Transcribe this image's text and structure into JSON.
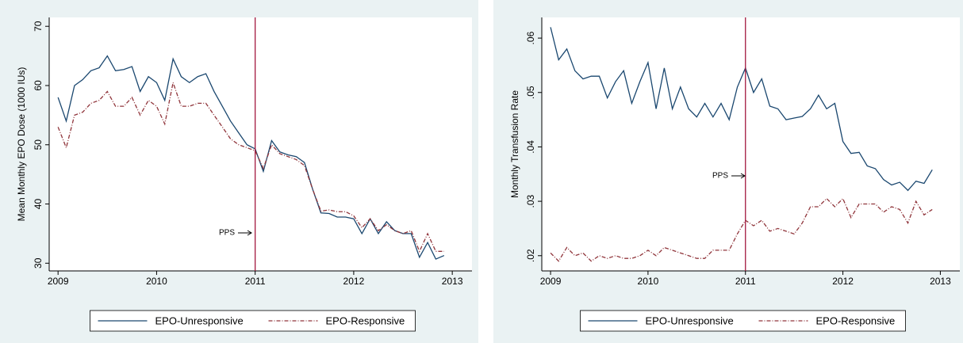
{
  "chart_data": [
    {
      "type": "line",
      "y_label": "Mean Monthly EPO Dose (1000 IUs)",
      "annotation": "PPS",
      "vline": 2011,
      "vline_color": "#a3193f",
      "x": [
        2009,
        2009.083,
        2009.167,
        2009.25,
        2009.333,
        2009.417,
        2009.5,
        2009.583,
        2009.667,
        2009.75,
        2009.833,
        2009.917,
        2010,
        2010.083,
        2010.167,
        2010.25,
        2010.333,
        2010.417,
        2010.5,
        2010.583,
        2010.667,
        2010.75,
        2010.833,
        2010.917,
        2011,
        2011.083,
        2011.167,
        2011.25,
        2011.333,
        2011.417,
        2011.5,
        2011.583,
        2011.667,
        2011.75,
        2011.833,
        2011.917,
        2012,
        2012.083,
        2012.167,
        2012.25,
        2012.333,
        2012.417,
        2012.5,
        2012.583,
        2012.667,
        2012.75,
        2012.833,
        2012.917
      ],
      "series": [
        {
          "name": "EPO-Unresponsive",
          "color": "#1a476f",
          "style": "solid",
          "values": [
            58,
            54,
            60,
            61,
            62.5,
            63,
            65,
            62.5,
            62.7,
            63.2,
            59,
            61.5,
            60.5,
            57.5,
            64.5,
            61.5,
            60.5,
            61.5,
            62,
            59,
            56.5,
            54,
            52,
            50,
            49.3,
            45.5,
            50.7,
            48.8,
            48.3,
            48,
            47,
            42.5,
            38.5,
            38.4,
            37.8,
            37.8,
            37.5,
            35,
            37.5,
            35,
            37,
            35.5,
            35,
            35,
            31,
            33.5,
            30.7,
            31.3
          ]
        },
        {
          "name": "EPO-Responsive",
          "color": "#90353b",
          "style": "dashdot",
          "values": [
            53,
            49.5,
            55,
            55.5,
            57,
            57.5,
            59,
            56.5,
            56.5,
            58,
            55,
            57.5,
            56.5,
            53.5,
            60.5,
            56.5,
            56.5,
            57,
            57,
            55,
            53,
            51,
            50,
            49.5,
            49,
            46,
            50,
            48.5,
            48,
            47.5,
            46.5,
            42.5,
            38.8,
            39,
            38.7,
            38.7,
            38,
            36,
            37.5,
            35.5,
            36.5,
            35.5,
            35,
            35.5,
            32,
            35,
            32,
            32
          ]
        }
      ],
      "xlim": [
        2008.91,
        2013.2
      ],
      "xticks": [
        2009,
        2010,
        2011,
        2012,
        2013
      ],
      "ylim": [
        28.7,
        71.5
      ],
      "yticks": [
        30,
        40,
        50,
        60,
        70
      ],
      "legend": "bottom"
    },
    {
      "type": "line",
      "y_label": "Monthly Transfusion Rate",
      "annotation": "PPS",
      "vline": 2011,
      "vline_color": "#a3193f",
      "x": [
        2009,
        2009.083,
        2009.167,
        2009.25,
        2009.333,
        2009.417,
        2009.5,
        2009.583,
        2009.667,
        2009.75,
        2009.833,
        2009.917,
        2010,
        2010.083,
        2010.167,
        2010.25,
        2010.333,
        2010.417,
        2010.5,
        2010.583,
        2010.667,
        2010.75,
        2010.833,
        2010.917,
        2011,
        2011.083,
        2011.167,
        2011.25,
        2011.333,
        2011.417,
        2011.5,
        2011.583,
        2011.667,
        2011.75,
        2011.833,
        2011.917,
        2012,
        2012.083,
        2012.167,
        2012.25,
        2012.333,
        2012.417,
        2012.5,
        2012.583,
        2012.667,
        2012.75,
        2012.833,
        2012.917
      ],
      "series": [
        {
          "name": "EPO-Unresponsive",
          "color": "#1a476f",
          "style": "solid",
          "values": [
            0.062,
            0.056,
            0.058,
            0.054,
            0.0525,
            0.053,
            0.053,
            0.049,
            0.052,
            0.054,
            0.048,
            0.052,
            0.0555,
            0.047,
            0.0545,
            0.047,
            0.051,
            0.047,
            0.0455,
            0.048,
            0.0455,
            0.048,
            0.045,
            0.051,
            0.0545,
            0.05,
            0.0525,
            0.0475,
            0.047,
            0.045,
            0.0453,
            0.0456,
            0.047,
            0.0495,
            0.047,
            0.048,
            0.041,
            0.0388,
            0.039,
            0.0365,
            0.036,
            0.034,
            0.033,
            0.0335,
            0.032,
            0.0337,
            0.0333,
            0.0358
          ]
        },
        {
          "name": "EPO-Responsive",
          "color": "#90353b",
          "style": "dashdot",
          "values": [
            0.0205,
            0.019,
            0.0215,
            0.02,
            0.0205,
            0.019,
            0.02,
            0.0195,
            0.02,
            0.0195,
            0.0195,
            0.02,
            0.021,
            0.02,
            0.0215,
            0.021,
            0.0205,
            0.02,
            0.0195,
            0.0195,
            0.021,
            0.021,
            0.021,
            0.024,
            0.0265,
            0.0255,
            0.0265,
            0.0245,
            0.025,
            0.0245,
            0.024,
            0.026,
            0.029,
            0.029,
            0.0305,
            0.029,
            0.0305,
            0.027,
            0.0295,
            0.0295,
            0.0295,
            0.028,
            0.029,
            0.0285,
            0.026,
            0.03,
            0.0275,
            0.0285
          ]
        }
      ],
      "xlim": [
        2008.91,
        2013.2
      ],
      "xticks": [
        2009,
        2010,
        2011,
        2012,
        2013
      ],
      "ylim": [
        0.0172,
        0.0638
      ],
      "yticks": [
        {
          "value": 0.02,
          "label": ".02"
        },
        {
          "value": 0.03,
          "label": ".03"
        },
        {
          "value": 0.04,
          "label": ".04"
        },
        {
          "value": 0.05,
          "label": ".05"
        },
        {
          "value": 0.06,
          "label": ".06"
        }
      ],
      "legend": "bottom"
    }
  ]
}
